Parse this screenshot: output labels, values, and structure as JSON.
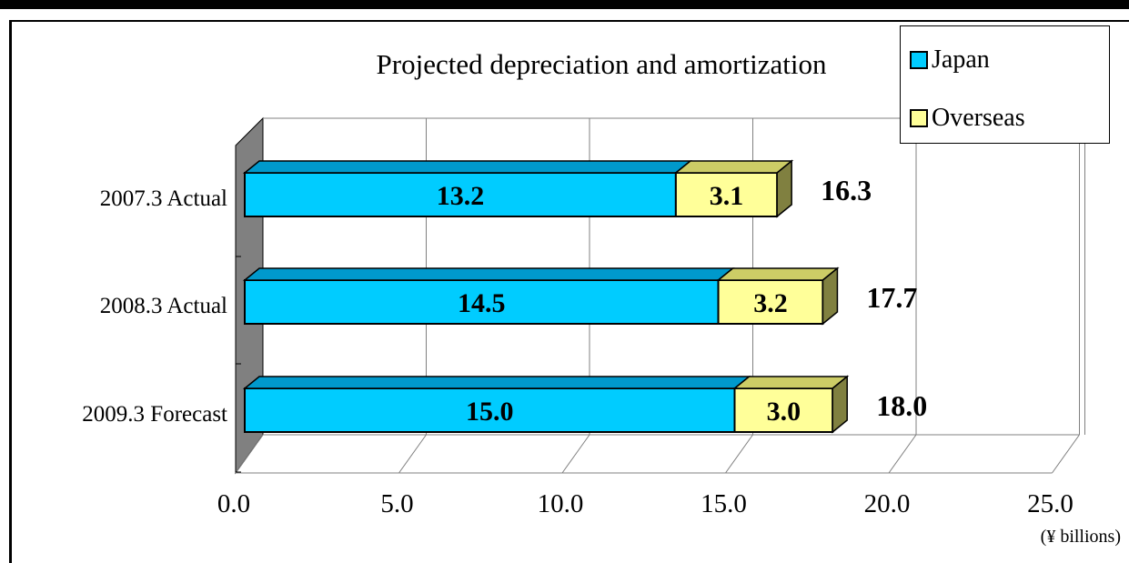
{
  "chart_data": {
    "type": "bar",
    "orientation": "horizontal",
    "stacked": true,
    "three_d": true,
    "title": "Projected depreciation and amortization",
    "unit_label": "(¥ billions)",
    "categories": [
      "2007.3 Actual",
      "2008.3 Actual",
      "2009.3 Forecast"
    ],
    "series": [
      {
        "name": "Japan",
        "values": [
          13.2,
          14.5,
          15.0
        ],
        "labels": [
          "13.2",
          "14.5",
          "15.0"
        ],
        "color": "#00CCFF"
      },
      {
        "name": "Overseas",
        "values": [
          3.1,
          3.2,
          3.0
        ],
        "labels": [
          "3.1",
          "3.2",
          "3.0"
        ],
        "color": "#FFFF99"
      }
    ],
    "totals": [
      "16.3",
      "17.7",
      "18.0"
    ],
    "x_ticks": [
      "0.0",
      "5.0",
      "10.0",
      "15.0",
      "20.0",
      "25.0"
    ],
    "xlim": [
      0,
      25
    ],
    "grid": true,
    "legend_position": "top-right",
    "wall_color": "#808080"
  }
}
